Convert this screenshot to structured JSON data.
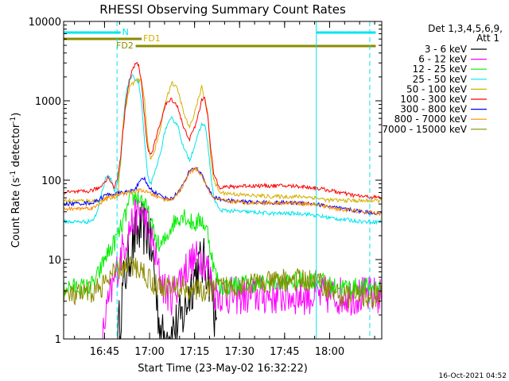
{
  "chart_data": {
    "type": "line",
    "title": "RHESSI Observing Summary Count Rates",
    "xlabel": "Start Time (23-May-02 16:32:22)",
    "ylabel": "Count Rate (s",
    "ylabel_sup1": "-1",
    "ylabel_mid": " detector",
    "ylabel_sup2": "-1",
    "ylabel_end": ")",
    "y_scale": "log",
    "ylim": [
      1,
      10000
    ],
    "xlim_min": [
      0,
      106
    ],
    "x_ticks": [
      {
        "min": 13.63,
        "label": "16:45"
      },
      {
        "min": 28.63,
        "label": "17:00"
      },
      {
        "min": 43.63,
        "label": "17:15"
      },
      {
        "min": 58.63,
        "label": "17:30"
      },
      {
        "min": 73.63,
        "label": "17:45"
      },
      {
        "min": 88.63,
        "label": "18:00"
      }
    ],
    "y_ticks": [
      {
        "value": 1,
        "label": "1"
      },
      {
        "value": 10,
        "label": "10"
      },
      {
        "value": 100,
        "label": "100"
      },
      {
        "value": 1000,
        "label": "1000"
      },
      {
        "value": 10000,
        "label": "10000"
      }
    ],
    "legend_header": [
      "Det 1,3,4,5,6,9,",
      "Att 1"
    ],
    "legend_position": "right",
    "footer": "16-Oct-2021 04:52",
    "flag_labels": {
      "n": "N",
      "fd1": "FD1",
      "fd2": "FD2"
    },
    "colors": {
      "night": "#00e5ee",
      "flare_bar": "#8b8b00",
      "fd1": "#d4b000",
      "fd2": "#8b8b00"
    },
    "vlines_min": [
      {
        "min": 17.8,
        "color": "#00e5ee",
        "style": "dashed"
      },
      {
        "min": 84.2,
        "color": "#00e5ee",
        "style": "solid"
      },
      {
        "min": 102.0,
        "color": "#00e5ee",
        "style": "dashed"
      }
    ],
    "series": [
      {
        "name": "3 - 6 keV",
        "color": "#000000",
        "points": [
          [
            18,
            1
          ],
          [
            20,
            5
          ],
          [
            22,
            12
          ],
          [
            24,
            20
          ],
          [
            26,
            25
          ],
          [
            28,
            22
          ],
          [
            29,
            15
          ],
          [
            30,
            8
          ],
          [
            31,
            3
          ],
          [
            32,
            1.5
          ],
          [
            33,
            1
          ],
          [
            38,
            1.5
          ],
          [
            40,
            2
          ],
          [
            42,
            4
          ],
          [
            44,
            7
          ],
          [
            46,
            9
          ],
          [
            48,
            8
          ],
          [
            50,
            3
          ],
          [
            51,
            1
          ]
        ]
      },
      {
        "name": "6 - 12 keV",
        "color": "#ff00ff",
        "points": [
          [
            13,
            1
          ],
          [
            14,
            2
          ],
          [
            16,
            4
          ],
          [
            18,
            8
          ],
          [
            20,
            15
          ],
          [
            22,
            25
          ],
          [
            24,
            35
          ],
          [
            26,
            40
          ],
          [
            28,
            28
          ],
          [
            30,
            14
          ],
          [
            32,
            6
          ],
          [
            34,
            4
          ],
          [
            36,
            3.5
          ],
          [
            38,
            5
          ],
          [
            40,
            7
          ],
          [
            42,
            9
          ],
          [
            44,
            10
          ],
          [
            46,
            11
          ],
          [
            48,
            8
          ],
          [
            50,
            4
          ],
          [
            55,
            3.5
          ],
          [
            65,
            3.5
          ],
          [
            75,
            3.5
          ],
          [
            85,
            3.5
          ],
          [
            95,
            3.5
          ],
          [
            106,
            3.5
          ]
        ]
      },
      {
        "name": "12 - 25 keV",
        "color": "#00ee00",
        "points": [
          [
            0,
            4.5
          ],
          [
            8,
            4.5
          ],
          [
            10,
            5
          ],
          [
            12,
            7
          ],
          [
            14,
            11
          ],
          [
            16,
            14
          ],
          [
            18,
            20
          ],
          [
            20,
            30
          ],
          [
            22,
            55
          ],
          [
            24,
            62
          ],
          [
            26,
            58
          ],
          [
            28,
            40
          ],
          [
            30,
            22
          ],
          [
            32,
            14
          ],
          [
            34,
            18
          ],
          [
            36,
            27
          ],
          [
            38,
            33
          ],
          [
            40,
            38
          ],
          [
            42,
            30
          ],
          [
            44,
            28
          ],
          [
            46,
            32
          ],
          [
            48,
            22
          ],
          [
            50,
            8
          ],
          [
            52,
            4.5
          ],
          [
            60,
            5
          ],
          [
            70,
            5
          ],
          [
            80,
            5.5
          ],
          [
            85,
            5.5
          ],
          [
            90,
            4.5
          ],
          [
            100,
            4.5
          ],
          [
            106,
            4.5
          ]
        ]
      },
      {
        "name": "25 - 50 keV",
        "color": "#00e5ee",
        "points": [
          [
            0,
            30
          ],
          [
            8,
            30
          ],
          [
            10,
            32
          ],
          [
            11,
            38
          ],
          [
            12,
            55
          ],
          [
            13,
            75
          ],
          [
            14,
            110
          ],
          [
            15,
            115
          ],
          [
            16,
            100
          ],
          [
            17,
            70
          ],
          [
            18,
            90
          ],
          [
            19,
            160
          ],
          [
            20,
            600
          ],
          [
            21,
            1400
          ],
          [
            22,
            1900
          ],
          [
            23,
            2000
          ],
          [
            24,
            1900
          ],
          [
            25,
            1700
          ],
          [
            26,
            900
          ],
          [
            27,
            300
          ],
          [
            28,
            110
          ],
          [
            29,
            90
          ],
          [
            30,
            110
          ],
          [
            32,
            200
          ],
          [
            34,
            450
          ],
          [
            36,
            600
          ],
          [
            38,
            500
          ],
          [
            40,
            250
          ],
          [
            42,
            180
          ],
          [
            44,
            300
          ],
          [
            46,
            500
          ],
          [
            47,
            510
          ],
          [
            48,
            300
          ],
          [
            49,
            120
          ],
          [
            50,
            60
          ],
          [
            52,
            42
          ],
          [
            60,
            40
          ],
          [
            70,
            38
          ],
          [
            80,
            38
          ],
          [
            90,
            33
          ],
          [
            100,
            30
          ],
          [
            106,
            30
          ]
        ]
      },
      {
        "name": "50 - 100 keV",
        "color": "#d4b000",
        "points": [
          [
            0,
            55
          ],
          [
            12,
            55
          ],
          [
            16,
            60
          ],
          [
            18,
            62
          ],
          [
            20,
            600
          ],
          [
            22,
            1500
          ],
          [
            24,
            1800
          ],
          [
            26,
            1800
          ],
          [
            27,
            1000
          ],
          [
            28,
            300
          ],
          [
            29,
            190
          ],
          [
            30,
            220
          ],
          [
            32,
            400
          ],
          [
            34,
            1000
          ],
          [
            36,
            1700
          ],
          [
            38,
            1400
          ],
          [
            40,
            700
          ],
          [
            42,
            450
          ],
          [
            44,
            800
          ],
          [
            46,
            1500
          ],
          [
            48,
            700
          ],
          [
            49,
            200
          ],
          [
            50,
            100
          ],
          [
            52,
            70
          ],
          [
            60,
            65
          ],
          [
            70,
            62
          ],
          [
            80,
            62
          ],
          [
            84,
            60
          ],
          [
            88,
            56
          ],
          [
            100,
            55
          ],
          [
            106,
            55
          ]
        ]
      },
      {
        "name": "100 - 300 keV",
        "color": "#ff0000",
        "points": [
          [
            0,
            70
          ],
          [
            8,
            72
          ],
          [
            12,
            80
          ],
          [
            14,
            100
          ],
          [
            15,
            110
          ],
          [
            16,
            90
          ],
          [
            17,
            80
          ],
          [
            18,
            110
          ],
          [
            19,
            200
          ],
          [
            20,
            500
          ],
          [
            21,
            1200
          ],
          [
            22,
            1800
          ],
          [
            23,
            2500
          ],
          [
            24,
            3000
          ],
          [
            25,
            2800
          ],
          [
            26,
            1600
          ],
          [
            27,
            600
          ],
          [
            28,
            250
          ],
          [
            29,
            210
          ],
          [
            30,
            260
          ],
          [
            32,
            500
          ],
          [
            34,
            900
          ],
          [
            36,
            1050
          ],
          [
            38,
            850
          ],
          [
            40,
            450
          ],
          [
            42,
            330
          ],
          [
            44,
            500
          ],
          [
            46,
            1000
          ],
          [
            47,
            1150
          ],
          [
            48,
            650
          ],
          [
            49,
            250
          ],
          [
            50,
            120
          ],
          [
            52,
            82
          ],
          [
            56,
            82
          ],
          [
            60,
            85
          ],
          [
            66,
            85
          ],
          [
            72,
            85
          ],
          [
            78,
            84
          ],
          [
            84,
            80
          ],
          [
            88,
            75
          ],
          [
            92,
            70
          ],
          [
            96,
            65
          ],
          [
            100,
            62
          ],
          [
            106,
            60
          ]
        ]
      },
      {
        "name": "300 - 800 keV",
        "color": "#0000ff",
        "points": [
          [
            0,
            50
          ],
          [
            10,
            52
          ],
          [
            12,
            58
          ],
          [
            14,
            65
          ],
          [
            18,
            68
          ],
          [
            20,
            70
          ],
          [
            22,
            72
          ],
          [
            24,
            80
          ],
          [
            26,
            100
          ],
          [
            27,
            105
          ],
          [
            28,
            85
          ],
          [
            30,
            72
          ],
          [
            32,
            65
          ],
          [
            34,
            60
          ],
          [
            36,
            58
          ],
          [
            38,
            70
          ],
          [
            40,
            90
          ],
          [
            42,
            130
          ],
          [
            44,
            145
          ],
          [
            46,
            120
          ],
          [
            48,
            80
          ],
          [
            50,
            60
          ],
          [
            55,
            55
          ],
          [
            62,
            53
          ],
          [
            70,
            52
          ],
          [
            80,
            52
          ],
          [
            84,
            50
          ],
          [
            88,
            47
          ],
          [
            92,
            44
          ],
          [
            100,
            40
          ],
          [
            106,
            38
          ]
        ]
      },
      {
        "name": "800 - 7000 keV",
        "color": "#ff8c00",
        "points": [
          [
            0,
            43
          ],
          [
            10,
            45
          ],
          [
            12,
            50
          ],
          [
            14,
            60
          ],
          [
            18,
            65
          ],
          [
            20,
            68
          ],
          [
            22,
            70
          ],
          [
            24,
            72
          ],
          [
            26,
            75
          ],
          [
            28,
            70
          ],
          [
            30,
            65
          ],
          [
            32,
            60
          ],
          [
            34,
            57
          ],
          [
            36,
            57
          ],
          [
            38,
            68
          ],
          [
            40,
            88
          ],
          [
            42,
            125
          ],
          [
            44,
            140
          ],
          [
            46,
            115
          ],
          [
            48,
            78
          ],
          [
            50,
            58
          ],
          [
            55,
            54
          ],
          [
            62,
            52
          ],
          [
            70,
            52
          ],
          [
            80,
            51
          ],
          [
            84,
            49
          ],
          [
            88,
            46
          ],
          [
            92,
            43
          ],
          [
            100,
            40
          ],
          [
            106,
            38
          ]
        ]
      },
      {
        "name": "7000 - 15000 keV",
        "color": "#8b8b00",
        "points": [
          [
            0,
            3.5
          ],
          [
            5,
            3.5
          ],
          [
            10,
            4
          ],
          [
            12,
            4.5
          ],
          [
            14,
            5
          ],
          [
            16,
            6
          ],
          [
            18,
            7.5
          ],
          [
            20,
            8
          ],
          [
            22,
            8
          ],
          [
            24,
            8
          ],
          [
            26,
            7.5
          ],
          [
            28,
            6
          ],
          [
            30,
            5
          ],
          [
            32,
            4.5
          ],
          [
            36,
            4.5
          ],
          [
            40,
            4.5
          ],
          [
            44,
            4
          ],
          [
            48,
            4
          ],
          [
            52,
            4.5
          ],
          [
            56,
            4.5
          ],
          [
            60,
            5
          ],
          [
            64,
            5
          ],
          [
            68,
            5
          ],
          [
            72,
            5.5
          ],
          [
            76,
            5.5
          ],
          [
            80,
            5.5
          ],
          [
            84,
            5.5
          ],
          [
            86,
            5
          ],
          [
            88,
            4.5
          ],
          [
            92,
            3.5
          ],
          [
            100,
            3.5
          ],
          [
            106,
            3.5
          ]
        ]
      }
    ]
  }
}
